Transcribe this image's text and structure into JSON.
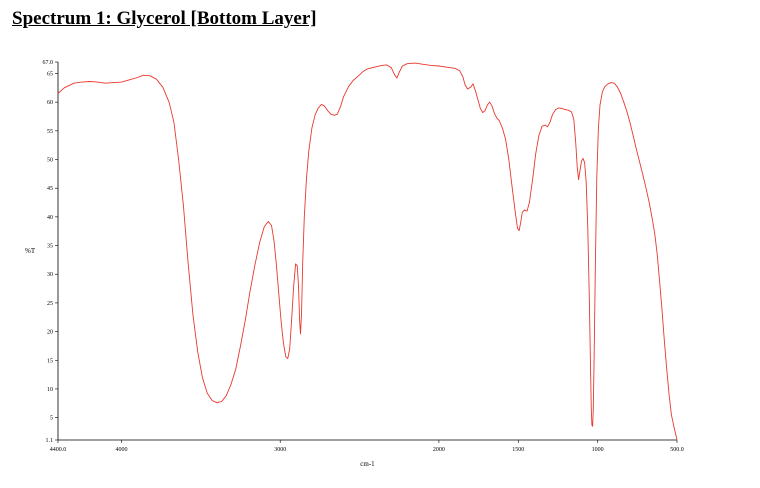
{
  "chart_data": {
    "type": "line",
    "title": "Spectrum 1: Glycerol [Bottom Layer]",
    "xlabel": "cm-1",
    "ylabel": "%T",
    "xlim": [
      4400.0,
      500.0
    ],
    "ylim": [
      1.1,
      67.0
    ],
    "x_reversed": true,
    "grid": false,
    "legend": "none",
    "x_ticks": [
      {
        "value": 4400,
        "label": "4400.0"
      },
      {
        "value": 4000,
        "label": "4000"
      },
      {
        "value": 3000,
        "label": "3000"
      },
      {
        "value": 2000,
        "label": "2000"
      },
      {
        "value": 1500,
        "label": "1500"
      },
      {
        "value": 1000,
        "label": "1000"
      },
      {
        "value": 500,
        "label": "500.0"
      }
    ],
    "y_ticks": [
      {
        "value": 67.0,
        "label": "67.0"
      },
      {
        "value": 65,
        "label": "65"
      },
      {
        "value": 60,
        "label": "60"
      },
      {
        "value": 55,
        "label": "55"
      },
      {
        "value": 50,
        "label": "50"
      },
      {
        "value": 45,
        "label": "45"
      },
      {
        "value": 40,
        "label": "40"
      },
      {
        "value": 35,
        "label": "35"
      },
      {
        "value": 30,
        "label": "30"
      },
      {
        "value": 25,
        "label": "25"
      },
      {
        "value": 20,
        "label": "20"
      },
      {
        "value": 15,
        "label": "15"
      },
      {
        "value": 10,
        "label": "10"
      },
      {
        "value": 5,
        "label": "5"
      },
      {
        "value": 1.1,
        "label": "1.1"
      }
    ],
    "series": [
      {
        "color": "#e8392d",
        "points": [
          [
            4400,
            61.5
          ],
          [
            4360,
            62.5
          ],
          [
            4300,
            63.3
          ],
          [
            4250,
            63.5
          ],
          [
            4200,
            63.6
          ],
          [
            4150,
            63.5
          ],
          [
            4100,
            63.3
          ],
          [
            4050,
            63.4
          ],
          [
            4000,
            63.5
          ],
          [
            3950,
            63.9
          ],
          [
            3900,
            64.3
          ],
          [
            3860,
            64.7
          ],
          [
            3820,
            64.6
          ],
          [
            3780,
            64.0
          ],
          [
            3740,
            62.6
          ],
          [
            3700,
            60.0
          ],
          [
            3670,
            56.5
          ],
          [
            3640,
            50.0
          ],
          [
            3610,
            42.0
          ],
          [
            3580,
            32.0
          ],
          [
            3550,
            23.0
          ],
          [
            3520,
            16.5
          ],
          [
            3490,
            12.0
          ],
          [
            3460,
            9.3
          ],
          [
            3430,
            8.0
          ],
          [
            3400,
            7.6
          ],
          [
            3370,
            7.8
          ],
          [
            3340,
            8.8
          ],
          [
            3310,
            10.8
          ],
          [
            3280,
            13.5
          ],
          [
            3250,
            17.5
          ],
          [
            3220,
            22.0
          ],
          [
            3190,
            27.0
          ],
          [
            3160,
            31.5
          ],
          [
            3130,
            35.5
          ],
          [
            3100,
            38.3
          ],
          [
            3075,
            39.2
          ],
          [
            3055,
            38.5
          ],
          [
            3040,
            36.0
          ],
          [
            3025,
            32.0
          ],
          [
            3010,
            27.0
          ],
          [
            2995,
            22.0
          ],
          [
            2980,
            18.0
          ],
          [
            2965,
            15.6
          ],
          [
            2952,
            15.3
          ],
          [
            2940,
            17.0
          ],
          [
            2928,
            22.0
          ],
          [
            2915,
            28.0
          ],
          [
            2903,
            31.8
          ],
          [
            2893,
            31.5
          ],
          [
            2885,
            28.0
          ],
          [
            2878,
            22.0
          ],
          [
            2872,
            19.6
          ],
          [
            2866,
            23.0
          ],
          [
            2858,
            32.0
          ],
          [
            2848,
            40.0
          ],
          [
            2835,
            46.5
          ],
          [
            2820,
            51.5
          ],
          [
            2800,
            55.5
          ],
          [
            2780,
            57.8
          ],
          [
            2760,
            59.0
          ],
          [
            2740,
            59.6
          ],
          [
            2720,
            59.3
          ],
          [
            2700,
            58.5
          ],
          [
            2680,
            57.9
          ],
          [
            2660,
            57.7
          ],
          [
            2640,
            57.9
          ],
          [
            2620,
            59.2
          ],
          [
            2600,
            61.0
          ],
          [
            2570,
            62.7
          ],
          [
            2540,
            63.8
          ],
          [
            2510,
            64.5
          ],
          [
            2480,
            65.3
          ],
          [
            2450,
            65.8
          ],
          [
            2420,
            66.0
          ],
          [
            2390,
            66.2
          ],
          [
            2360,
            66.4
          ],
          [
            2330,
            66.5
          ],
          [
            2300,
            66.0
          ],
          [
            2280,
            64.8
          ],
          [
            2265,
            64.2
          ],
          [
            2250,
            65.2
          ],
          [
            2230,
            66.3
          ],
          [
            2200,
            66.7
          ],
          [
            2150,
            66.8
          ],
          [
            2100,
            66.6
          ],
          [
            2050,
            66.4
          ],
          [
            2000,
            66.3
          ],
          [
            1950,
            66.1
          ],
          [
            1900,
            65.9
          ],
          [
            1870,
            65.5
          ],
          [
            1850,
            64.5
          ],
          [
            1835,
            63.0
          ],
          [
            1820,
            62.3
          ],
          [
            1800,
            62.6
          ],
          [
            1785,
            63.2
          ],
          [
            1770,
            62.0
          ],
          [
            1755,
            60.5
          ],
          [
            1740,
            59.0
          ],
          [
            1725,
            58.2
          ],
          [
            1710,
            58.5
          ],
          [
            1695,
            59.5
          ],
          [
            1680,
            60.0
          ],
          [
            1665,
            59.3
          ],
          [
            1650,
            58.0
          ],
          [
            1635,
            57.2
          ],
          [
            1620,
            56.8
          ],
          [
            1600,
            55.5
          ],
          [
            1580,
            53.5
          ],
          [
            1560,
            50.0
          ],
          [
            1540,
            45.5
          ],
          [
            1520,
            41.0
          ],
          [
            1505,
            38.0
          ],
          [
            1495,
            37.6
          ],
          [
            1485,
            39.0
          ],
          [
            1475,
            40.8
          ],
          [
            1460,
            41.2
          ],
          [
            1445,
            41.0
          ],
          [
            1430,
            42.5
          ],
          [
            1410,
            46.5
          ],
          [
            1390,
            51.0
          ],
          [
            1370,
            54.2
          ],
          [
            1350,
            55.8
          ],
          [
            1330,
            56.0
          ],
          [
            1315,
            55.7
          ],
          [
            1300,
            56.5
          ],
          [
            1285,
            57.8
          ],
          [
            1265,
            58.7
          ],
          [
            1245,
            59.0
          ],
          [
            1225,
            58.9
          ],
          [
            1205,
            58.7
          ],
          [
            1185,
            58.6
          ],
          [
            1165,
            58.3
          ],
          [
            1150,
            57.0
          ],
          [
            1138,
            53.0
          ],
          [
            1128,
            48.5
          ],
          [
            1120,
            46.5
          ],
          [
            1112,
            48.0
          ],
          [
            1102,
            49.7
          ],
          [
            1092,
            50.2
          ],
          [
            1082,
            49.5
          ],
          [
            1072,
            46.0
          ],
          [
            1062,
            38.0
          ],
          [
            1052,
            25.0
          ],
          [
            1045,
            14.0
          ],
          [
            1040,
            6.5
          ],
          [
            1036,
            3.7
          ],
          [
            1032,
            3.5
          ],
          [
            1028,
            6.0
          ],
          [
            1022,
            15.0
          ],
          [
            1014,
            32.0
          ],
          [
            1005,
            47.0
          ],
          [
            995,
            55.5
          ],
          [
            985,
            59.5
          ],
          [
            970,
            61.8
          ],
          [
            955,
            62.7
          ],
          [
            935,
            63.2
          ],
          [
            915,
            63.4
          ],
          [
            895,
            63.3
          ],
          [
            875,
            62.6
          ],
          [
            855,
            61.5
          ],
          [
            835,
            60.0
          ],
          [
            815,
            58.3
          ],
          [
            795,
            56.3
          ],
          [
            775,
            54.0
          ],
          [
            755,
            51.7
          ],
          [
            735,
            49.5
          ],
          [
            715,
            47.3
          ],
          [
            695,
            45.0
          ],
          [
            675,
            42.5
          ],
          [
            655,
            39.5
          ],
          [
            640,
            37.0
          ],
          [
            625,
            33.5
          ],
          [
            610,
            29.0
          ],
          [
            595,
            24.0
          ],
          [
            580,
            18.5
          ],
          [
            565,
            13.5
          ],
          [
            550,
            9.0
          ],
          [
            535,
            5.5
          ],
          [
            520,
            3.5
          ],
          [
            510,
            2.3
          ],
          [
            500,
            1.2
          ]
        ]
      }
    ]
  }
}
